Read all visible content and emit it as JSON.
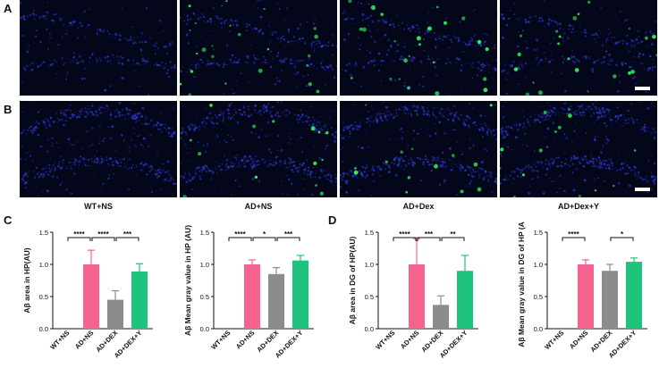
{
  "panel_labels": [
    "A",
    "B",
    "C",
    "D"
  ],
  "groups": [
    "WT+NS",
    "AD+NS",
    "AD+Dex",
    "AD+Dex+Y"
  ],
  "colors": {
    "wt": "#d9d9d9",
    "ad_ns": "#f4648e",
    "ad_dex": "#8c8c8c",
    "ad_dex_y": "#1ec47c",
    "tissue_bg": "#04061a",
    "nuclei": "#2b3bd8",
    "plaque": "#35f05a"
  },
  "chart_data": [
    {
      "type": "bar",
      "ylabel": "Aβ area in HP(AU)",
      "categories": [
        "WT+NS",
        "AD+NS",
        "AD+DEX",
        "AD+DEX+Y"
      ],
      "values": [
        0,
        1.0,
        0.45,
        0.89
      ],
      "errors": [
        0,
        0.22,
        0.14,
        0.12
      ],
      "ylim": [
        0,
        1.5
      ],
      "yticks": [
        "0.0",
        "0.5",
        "1.0",
        "1.5"
      ],
      "significance": [
        {
          "from": 0,
          "to": 1,
          "label": "****"
        },
        {
          "from": 1,
          "to": 2,
          "label": "****"
        },
        {
          "from": 2,
          "to": 3,
          "label": "***"
        }
      ]
    },
    {
      "type": "bar",
      "ylabel": "Aβ Mean gray value in HP (AU)",
      "categories": [
        "WT+NS",
        "AD+NS",
        "AD+DEX",
        "AD+DEX+Y"
      ],
      "values": [
        0,
        1.0,
        0.85,
        1.06
      ],
      "errors": [
        0,
        0.07,
        0.1,
        0.08
      ],
      "ylim": [
        0,
        1.5
      ],
      "yticks": [
        "0.0",
        "0.5",
        "1.0",
        "1.5"
      ],
      "significance": [
        {
          "from": 0,
          "to": 1,
          "label": "****"
        },
        {
          "from": 1,
          "to": 2,
          "label": "*"
        },
        {
          "from": 2,
          "to": 3,
          "label": "***"
        }
      ]
    },
    {
      "type": "bar",
      "ylabel": "Aβ area in DG of HP(AU)",
      "categories": [
        "WT+NS",
        "AD+NS",
        "AD+DEX",
        "AD+DEX+Y"
      ],
      "values": [
        0,
        1.0,
        0.37,
        0.9
      ],
      "errors": [
        0,
        0.4,
        0.14,
        0.24
      ],
      "ylim": [
        0,
        1.5
      ],
      "yticks": [
        "0.0",
        "0.5",
        "1.0",
        "1.5"
      ],
      "significance": [
        {
          "from": 0,
          "to": 1,
          "label": "****"
        },
        {
          "from": 1,
          "to": 2,
          "label": "***"
        },
        {
          "from": 2,
          "to": 3,
          "label": "**"
        }
      ]
    },
    {
      "type": "bar",
      "ylabel": "Aβ Mean gray value in DG of HP (AU)",
      "categories": [
        "WT+NS",
        "AD+NS",
        "AD+DEX",
        "AD+DEX+Y"
      ],
      "values": [
        0,
        1.0,
        0.9,
        1.04
      ],
      "errors": [
        0,
        0.07,
        0.1,
        0.06
      ],
      "ylim": [
        0,
        1.5
      ],
      "yticks": [
        "0.0",
        "0.5",
        "1.0",
        "1.5"
      ],
      "significance": [
        {
          "from": 0,
          "to": 1,
          "label": "****"
        },
        {
          "from": 2,
          "to": 3,
          "label": "*"
        }
      ]
    }
  ]
}
